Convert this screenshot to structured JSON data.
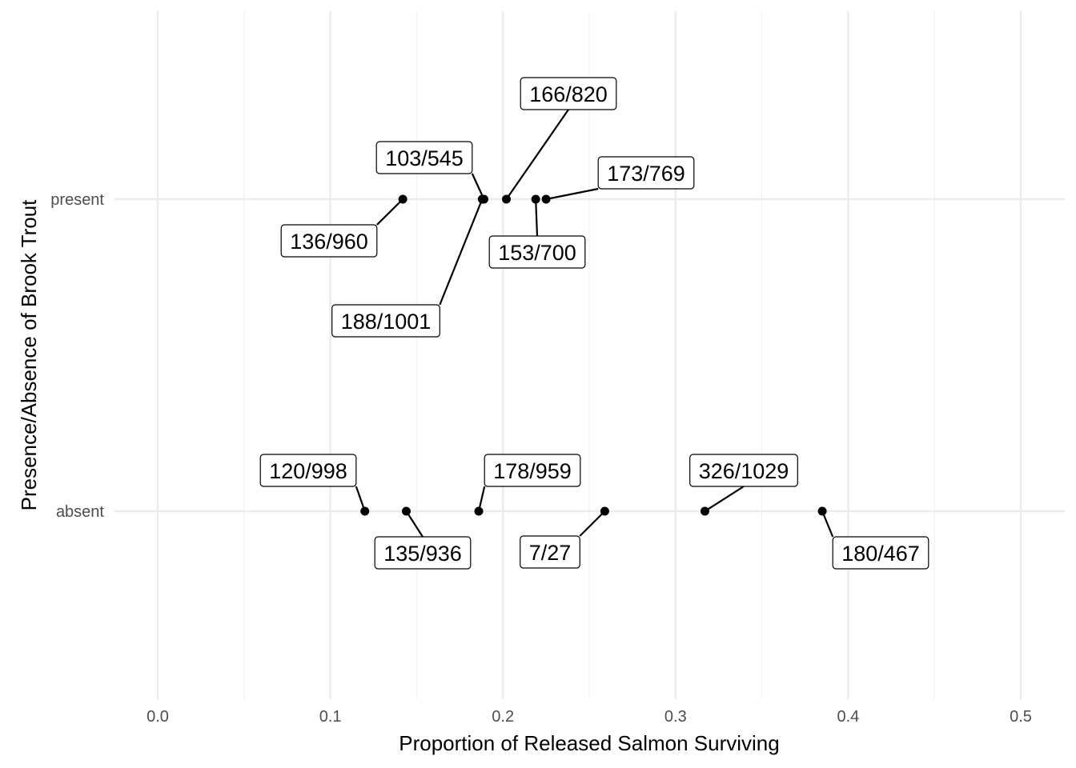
{
  "chart_data": {
    "type": "scatter",
    "xlabel": "Proportion of Released Salmon Surviving",
    "ylabel": "Presence/Absence of Brook Trout",
    "xlim": [
      0,
      0.5
    ],
    "x_ticks": [
      "0.0",
      "0.1",
      "0.2",
      "0.3",
      "0.4",
      "0.5"
    ],
    "categories": [
      "absent",
      "present"
    ],
    "grid": true,
    "series": [
      {
        "category": "present",
        "points": [
          {
            "label": "136/960",
            "x": 0.142
          },
          {
            "label": "103/545",
            "x": 0.189
          },
          {
            "label": "188/1001",
            "x": 0.188
          },
          {
            "label": "166/820",
            "x": 0.202
          },
          {
            "label": "153/700",
            "x": 0.219
          },
          {
            "label": "173/769",
            "x": 0.225
          }
        ]
      },
      {
        "category": "absent",
        "points": [
          {
            "label": "120/998",
            "x": 0.12
          },
          {
            "label": "135/936",
            "x": 0.144
          },
          {
            "label": "178/959",
            "x": 0.186
          },
          {
            "label": "7/27",
            "x": 0.259
          },
          {
            "label": "326/1029",
            "x": 0.317
          },
          {
            "label": "180/467",
            "x": 0.385
          }
        ]
      }
    ]
  }
}
